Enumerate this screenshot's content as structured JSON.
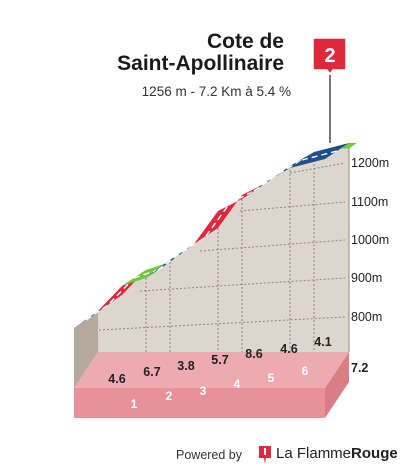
{
  "climb": {
    "title_line1": "Cote de",
    "title_line2": "Saint-Apollinaire",
    "subtitle": "1256 m - 7.2 Km à 5.4 %",
    "category_flag": "2",
    "total_km_label": "7.2"
  },
  "chart_data": {
    "type": "area",
    "x_unit": "km",
    "y_unit": "m",
    "segments": [
      {
        "km_label": "1",
        "gradient": 4.6,
        "gradient_label": "4.6",
        "color": "#1f4e8c"
      },
      {
        "km_label": "2",
        "gradient": 6.7,
        "gradient_label": "6.7",
        "color": "#e0283c"
      },
      {
        "km_label": "3",
        "gradient": 3.8,
        "gradient_label": "3.8",
        "color": "#6cc93a"
      },
      {
        "km_label": "4",
        "gradient": 5.7,
        "gradient_label": "5.7",
        "color": "#1f4e8c"
      },
      {
        "km_label": "5",
        "gradient": 8.6,
        "gradient_label": "8.6",
        "color": "#e0283c"
      },
      {
        "km_label": "6",
        "gradient": 4.6,
        "gradient_label": "4.6",
        "color": "#1f4e8c"
      },
      {
        "km_label": "",
        "gradient": 4.1,
        "gradient_label": "4.1",
        "color": "#1f4e8c"
      }
    ],
    "final_segment_color": "#6cc93a",
    "elevation_ticks": [
      "800m",
      "900m",
      "1000m",
      "1100m",
      "1200m"
    ],
    "summit_elevation_m": 1256,
    "distance_km": 7.2,
    "grid": true
  },
  "footer": {
    "powered_by": "Powered by",
    "brand_la": "La Flamme",
    "brand_rouge": "Rouge"
  },
  "colors": {
    "profile_fill": "#ddd6ce",
    "base_band": "#e8919a",
    "left_side": "#b4a99c",
    "flag": "#e0283c"
  }
}
